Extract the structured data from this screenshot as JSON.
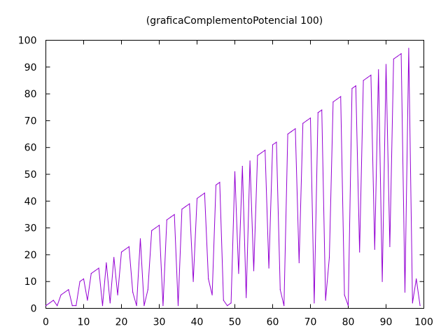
{
  "chart_data": {
    "type": "line",
    "title": "(graficaComplementoPotencial 100)",
    "xlabel": "",
    "ylabel": "",
    "xlim": [
      0,
      100
    ],
    "ylim": [
      0,
      100
    ],
    "x_ticks": [
      0,
      10,
      20,
      30,
      40,
      50,
      60,
      70,
      80,
      90,
      100
    ],
    "y_ticks": [
      0,
      10,
      20,
      30,
      40,
      50,
      60,
      70,
      80,
      90,
      100
    ],
    "grid": false,
    "legend": "none",
    "series_color": "#9400d3",
    "series": [
      {
        "x": [
          0,
          1,
          2,
          3,
          4,
          5,
          6,
          7,
          8,
          9,
          10,
          11,
          12,
          13,
          14,
          15,
          16,
          17,
          18,
          19,
          20,
          21,
          22,
          23,
          24,
          25,
          26,
          27,
          28,
          29,
          30,
          31,
          32,
          33,
          34,
          35,
          36,
          37,
          38,
          39,
          40,
          41,
          42,
          43,
          44,
          45,
          46,
          47,
          48,
          49,
          50,
          51,
          52,
          53,
          54,
          55,
          56,
          57,
          58,
          59,
          60,
          61,
          62,
          63,
          64,
          65,
          66,
          67,
          68,
          69,
          70,
          71,
          72,
          73,
          74,
          75,
          76,
          77,
          78,
          79,
          80,
          81,
          82,
          83,
          84,
          85,
          86,
          87,
          88,
          89,
          90,
          91,
          92,
          93,
          94,
          95,
          96,
          97,
          98,
          99
        ],
        "values": [
          1,
          2,
          3,
          1,
          5,
          6,
          7,
          1,
          1,
          10,
          11,
          3,
          13,
          14,
          15,
          1,
          17,
          2,
          19,
          5,
          21,
          22,
          23,
          6,
          1,
          26,
          1,
          7,
          29,
          30,
          31,
          1,
          33,
          34,
          35,
          1,
          37,
          38,
          39,
          10,
          41,
          42,
          43,
          11,
          5,
          46,
          47,
          3,
          1,
          2,
          51,
          13,
          53,
          4,
          55,
          14,
          57,
          58,
          59,
          15,
          61,
          62,
          7,
          1,
          65,
          66,
          67,
          17,
          69,
          70,
          71,
          2,
          73,
          74,
          3,
          19,
          77,
          78,
          79,
          5,
          1,
          82,
          83,
          21,
          85,
          86,
          87,
          22,
          89,
          10,
          91,
          23,
          93,
          94,
          95,
          6,
          97,
          2,
          11,
          1
        ]
      }
    ]
  }
}
